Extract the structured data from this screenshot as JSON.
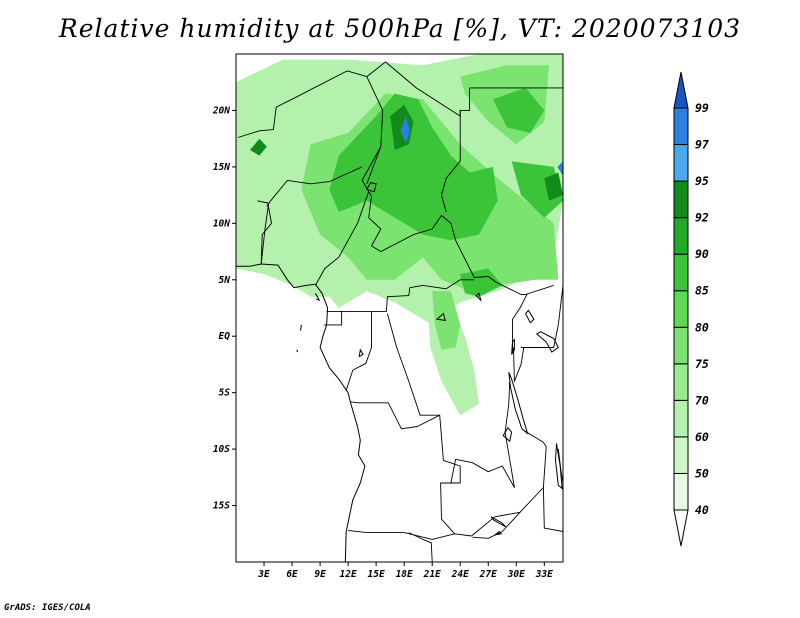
{
  "title": "Relative humidity at 500hPa [%], VT: 2020073103",
  "credit": "GrADS: IGES/COLA",
  "map": {
    "lon_range": [
      0,
      35
    ],
    "lat_range": [
      -20,
      25
    ],
    "lat_ticks": [
      {
        "value": 20,
        "label": "20N"
      },
      {
        "value": 15,
        "label": "15N"
      },
      {
        "value": 10,
        "label": "10N"
      },
      {
        "value": 5,
        "label": "5N"
      },
      {
        "value": 0,
        "label": "EQ"
      },
      {
        "value": -5,
        "label": "5S"
      },
      {
        "value": -10,
        "label": "10S"
      },
      {
        "value": -15,
        "label": "15S"
      }
    ],
    "lon_ticks": [
      {
        "value": 3,
        "label": "3E"
      },
      {
        "value": 6,
        "label": "6E"
      },
      {
        "value": 9,
        "label": "9E"
      },
      {
        "value": 12,
        "label": "12E"
      },
      {
        "value": 15,
        "label": "15E"
      },
      {
        "value": 18,
        "label": "18E"
      },
      {
        "value": 21,
        "label": "21E"
      },
      {
        "value": 24,
        "label": "24E"
      },
      {
        "value": 27,
        "label": "27E"
      },
      {
        "value": 30,
        "label": "30E"
      },
      {
        "value": 33,
        "label": "33E"
      }
    ]
  },
  "colorbar": {
    "levels": [
      "40",
      "50",
      "60",
      "70",
      "75",
      "80",
      "85",
      "90",
      "92",
      "95",
      "97",
      "99"
    ],
    "colors": [
      "#ffffff",
      "#e6fbe2",
      "#cdf7c7",
      "#b4f1ac",
      "#9aeb8f",
      "#7be36f",
      "#5cda52",
      "#3cc439",
      "#22a926",
      "#138b1c",
      "#4aa8ef",
      "#2d7fe0",
      "#1a55c4"
    ]
  },
  "humidity_regions": [
    {
      "level": 60,
      "points": [
        [
          0,
          22.5
        ],
        [
          5,
          24.5
        ],
        [
          12,
          24.5
        ],
        [
          20,
          24
        ],
        [
          26,
          25
        ],
        [
          35,
          25
        ],
        [
          35,
          12
        ],
        [
          34,
          7
        ],
        [
          32,
          5.5
        ],
        [
          28,
          4
        ],
        [
          24,
          3
        ],
        [
          21,
          1
        ],
        [
          19,
          2
        ],
        [
          17,
          3
        ],
        [
          14,
          4
        ],
        [
          11,
          2.5
        ],
        [
          10,
          3.5
        ],
        [
          8,
          3.5
        ],
        [
          6,
          4.5
        ],
        [
          3,
          5.5
        ],
        [
          0,
          6
        ]
      ]
    },
    {
      "level": 60,
      "points": [
        [
          20.5,
          3
        ],
        [
          23,
          3
        ],
        [
          24.5,
          0
        ],
        [
          25.5,
          -3
        ],
        [
          26,
          -6
        ],
        [
          24,
          -7
        ],
        [
          22,
          -4
        ],
        [
          20.8,
          -1
        ]
      ]
    },
    {
      "level": 75,
      "points": [
        [
          8,
          17
        ],
        [
          12,
          18
        ],
        [
          16,
          21.5
        ],
        [
          20,
          21
        ],
        [
          24,
          17
        ],
        [
          28,
          14
        ],
        [
          31,
          12
        ],
        [
          34,
          10
        ],
        [
          34.5,
          5
        ],
        [
          32,
          5
        ],
        [
          28,
          4.5
        ],
        [
          25,
          4
        ],
        [
          22,
          5
        ],
        [
          20,
          7
        ],
        [
          17,
          5
        ],
        [
          14,
          5
        ],
        [
          12,
          7
        ],
        [
          9,
          9
        ],
        [
          7,
          13
        ]
      ]
    },
    {
      "level": 75,
      "points": [
        [
          24,
          23
        ],
        [
          29,
          24
        ],
        [
          33.5,
          24
        ],
        [
          33,
          19
        ],
        [
          30,
          17
        ],
        [
          27,
          19
        ],
        [
          24.5,
          21.5
        ]
      ]
    },
    {
      "level": 75,
      "points": [
        [
          21,
          4
        ],
        [
          23,
          4
        ],
        [
          24,
          1
        ],
        [
          23.5,
          -1
        ],
        [
          22,
          -1.2
        ],
        [
          21.3,
          1
        ]
      ]
    },
    {
      "level": 85,
      "points": [
        [
          15,
          19.5
        ],
        [
          17,
          21.5
        ],
        [
          19.5,
          21
        ],
        [
          21,
          18.5
        ],
        [
          23,
          16
        ],
        [
          25,
          14.5
        ],
        [
          27.5,
          15
        ],
        [
          28,
          12
        ],
        [
          26,
          9
        ],
        [
          23,
          8.5
        ],
        [
          20,
          9
        ],
        [
          18,
          10
        ],
        [
          14,
          12
        ],
        [
          11,
          11
        ],
        [
          10,
          13
        ],
        [
          11,
          16
        ]
      ]
    },
    {
      "level": 85,
      "points": [
        [
          27.5,
          21
        ],
        [
          31,
          22
        ],
        [
          33,
          20
        ],
        [
          31.5,
          18
        ],
        [
          29,
          18.5
        ]
      ]
    },
    {
      "level": 85,
      "points": [
        [
          29.5,
          15.5
        ],
        [
          34,
          15
        ],
        [
          35,
          12
        ],
        [
          33,
          10.5
        ],
        [
          30.5,
          12.5
        ]
      ]
    },
    {
      "level": 85,
      "points": [
        [
          24,
          5.5
        ],
        [
          27,
          6
        ],
        [
          28.5,
          4.5
        ],
        [
          26,
          3.5
        ],
        [
          24.5,
          3.8
        ]
      ]
    },
    {
      "level": 92,
      "points": [
        [
          16.5,
          19.5
        ],
        [
          18,
          20.5
        ],
        [
          19,
          19
        ],
        [
          18.5,
          17
        ],
        [
          17,
          16.5
        ]
      ]
    },
    {
      "level": 92,
      "points": [
        [
          33,
          14
        ],
        [
          34.5,
          14.5
        ],
        [
          35,
          12.5
        ],
        [
          33.5,
          12
        ]
      ]
    },
    {
      "level": 92,
      "points": [
        [
          1.5,
          16.5
        ],
        [
          2.5,
          17.5
        ],
        [
          3.3,
          16.8
        ],
        [
          2.5,
          16
        ]
      ]
    },
    {
      "level": 97,
      "points": [
        [
          17.6,
          18.2
        ],
        [
          18.2,
          19.5
        ],
        [
          18.6,
          18.2
        ],
        [
          18.2,
          17.1
        ]
      ]
    },
    {
      "level": 97,
      "points": [
        [
          34.4,
          15
        ],
        [
          35,
          15.5
        ],
        [
          35,
          14.2
        ]
      ]
    }
  ],
  "boundaries": [
    [
      [
        0.2,
        17.6
      ],
      [
        2.5,
        18.2
      ],
      [
        4,
        18.3
      ],
      [
        4.3,
        20.3
      ],
      [
        6,
        21
      ],
      [
        11.9,
        23.5
      ],
      [
        14,
        23
      ],
      [
        16,
        24.3
      ]
    ],
    [
      [
        16,
        24.3
      ],
      [
        19.3,
        22
      ],
      [
        24,
        19.5
      ],
      [
        24,
        20
      ],
      [
        25,
        20
      ],
      [
        25,
        22
      ]
    ],
    [
      [
        25,
        22
      ],
      [
        35,
        22
      ]
    ],
    [
      [
        14,
        23
      ],
      [
        15.7,
        20
      ],
      [
        15.5,
        16.8
      ],
      [
        14,
        13.5
      ]
    ],
    [
      [
        13.5,
        15
      ],
      [
        10,
        13.7
      ],
      [
        8,
        13.5
      ],
      [
        5.5,
        13.8
      ],
      [
        3.7,
        12
      ],
      [
        3.3,
        11.5
      ]
    ],
    [
      [
        15.5,
        16.8
      ],
      [
        13.5,
        13.8
      ],
      [
        14.5,
        12.4
      ],
      [
        14.2,
        10.5
      ],
      [
        15.5,
        9.5
      ],
      [
        14.5,
        8
      ],
      [
        15.5,
        7.5
      ],
      [
        19,
        9
      ],
      [
        21,
        9.5
      ],
      [
        22,
        10.7
      ],
      [
        23,
        10
      ],
      [
        23.5,
        8.5
      ],
      [
        25.5,
        5.2
      ],
      [
        27,
        5.3
      ],
      [
        27.8,
        4.8
      ],
      [
        30.5,
        3.7
      ],
      [
        31,
        3.7
      ],
      [
        34,
        4.5
      ]
    ],
    [
      [
        24,
        20
      ],
      [
        24,
        15.5
      ],
      [
        22.5,
        14
      ],
      [
        22,
        12.5
      ],
      [
        22.5,
        11
      ]
    ],
    [
      [
        2.3,
        12
      ],
      [
        3.4,
        11.8
      ],
      [
        3.8,
        10
      ],
      [
        2.8,
        9
      ],
      [
        2.7,
        6.4
      ]
    ],
    [
      [
        3.5,
        11.8
      ],
      [
        3.1,
        9.5
      ],
      [
        2.7,
        6.4
      ]
    ],
    [
      [
        8.5,
        4.5
      ],
      [
        9.5,
        6
      ],
      [
        11,
        7
      ],
      [
        12,
        8.5
      ],
      [
        13,
        10
      ],
      [
        14.2,
        12.8
      ]
    ],
    [
      [
        9.7,
        2.2
      ],
      [
        11.3,
        2.2
      ],
      [
        16.1,
        2.2
      ],
      [
        16.2,
        3.5
      ],
      [
        18.5,
        3.6
      ],
      [
        18.6,
        4.3
      ],
      [
        20,
        4.5
      ],
      [
        22.5,
        4.2
      ],
      [
        24,
        5
      ],
      [
        25.5,
        5
      ]
    ],
    [
      [
        11.3,
        2.2
      ],
      [
        11.3,
        1
      ],
      [
        9.4,
        1
      ]
    ],
    [
      [
        14.5,
        2.2
      ],
      [
        14.5,
        -1
      ],
      [
        13.9,
        -2.4
      ],
      [
        12.5,
        -3
      ],
      [
        11.8,
        -4.8
      ]
    ],
    [
      [
        16.2,
        2
      ],
      [
        17.2,
        -1
      ],
      [
        18.5,
        -4
      ],
      [
        19.7,
        -7
      ],
      [
        21.8,
        -7
      ],
      [
        22.2,
        -11
      ],
      [
        24,
        -11.5
      ],
      [
        24,
        -13
      ],
      [
        21.9,
        -13
      ],
      [
        22,
        -16.2
      ],
      [
        23.4,
        -17.5
      ]
    ],
    [
      [
        12.2,
        -5.8
      ],
      [
        13,
        -5.9
      ],
      [
        16.3,
        -5.9
      ],
      [
        17.7,
        -8.2
      ],
      [
        19.4,
        -8
      ],
      [
        21.8,
        -7
      ]
    ],
    [
      [
        12,
        -17.2
      ],
      [
        14,
        -17.4
      ],
      [
        18,
        -17.4
      ],
      [
        21,
        -18
      ],
      [
        23.4,
        -17.5
      ],
      [
        25.2,
        -17.7
      ]
    ],
    [
      [
        23,
        -13
      ],
      [
        23.5,
        -10.9
      ],
      [
        25.3,
        -11.2
      ],
      [
        27,
        -12
      ],
      [
        28.5,
        -11.5
      ],
      [
        29.8,
        -13.4
      ],
      [
        28.8,
        -8.5
      ],
      [
        29.2,
        -6
      ],
      [
        29.3,
        -4
      ]
    ],
    [
      [
        29.7,
        -1
      ],
      [
        29.8,
        -4
      ],
      [
        30.5,
        -2.5
      ],
      [
        30.8,
        -1
      ]
    ],
    [
      [
        29.6,
        -1.4
      ],
      [
        29.6,
        1.5
      ],
      [
        30.4,
        2.5
      ],
      [
        31.2,
        3.8
      ]
    ],
    [
      [
        30.5,
        -1
      ],
      [
        34,
        -1
      ],
      [
        34.5,
        1
      ],
      [
        35,
        4.5
      ]
    ],
    [
      [
        25.2,
        -17.7
      ],
      [
        27.7,
        -16
      ],
      [
        30.4,
        -15.6
      ],
      [
        32.9,
        -13.4
      ],
      [
        33.2,
        -9.8
      ],
      [
        32.9,
        -9.4
      ],
      [
        30.7,
        -8.3
      ]
    ],
    [
      [
        30.4,
        -15.6
      ],
      [
        28.5,
        -17.3
      ],
      [
        27,
        -17.9
      ],
      [
        25.3,
        -17.8
      ]
    ],
    [
      [
        18.5,
        -17.4
      ],
      [
        20,
        -18
      ],
      [
        20.9,
        -18.3
      ],
      [
        21,
        -20
      ]
    ],
    [
      [
        32.9,
        -13.4
      ],
      [
        33,
        -17
      ],
      [
        35,
        -17.3
      ]
    ],
    [
      [
        34.5,
        -10
      ],
      [
        34.8,
        -12
      ],
      [
        35,
        -13
      ]
    ]
  ],
  "coastlines": [
    [
      [
        0,
        6.2
      ],
      [
        1.5,
        6.2
      ],
      [
        2.7,
        6.4
      ],
      [
        4.5,
        6.3
      ],
      [
        5.5,
        5
      ],
      [
        6.2,
        4.3
      ],
      [
        7.5,
        4.5
      ],
      [
        8.5,
        4.6
      ],
      [
        9.2,
        3.8
      ],
      [
        9.8,
        2.5
      ],
      [
        9.7,
        1
      ],
      [
        9.3,
        0
      ],
      [
        9,
        -1
      ],
      [
        10,
        -2.8
      ],
      [
        11,
        -3.8
      ],
      [
        12,
        -5
      ],
      [
        12.3,
        -6
      ],
      [
        13,
        -8
      ],
      [
        13.3,
        -9.2
      ],
      [
        13.1,
        -10.5
      ],
      [
        13.8,
        -11.5
      ],
      [
        13.3,
        -13
      ],
      [
        12.5,
        -14.5
      ],
      [
        12,
        -16.5
      ],
      [
        11.8,
        -17.3
      ],
      [
        11.7,
        -20
      ]
    ],
    [
      [
        0,
        -5
      ],
      [
        0,
        -5
      ]
    ]
  ],
  "lakes": [
    [
      [
        29.2,
        -3.2
      ],
      [
        29.4,
        -4.6
      ],
      [
        29.9,
        -6.5
      ],
      [
        30.6,
        -8.2
      ],
      [
        31.2,
        -8.6
      ],
      [
        30.7,
        -7.2
      ],
      [
        30.2,
        -5.7
      ],
      [
        29.5,
        -3.8
      ]
    ],
    [
      [
        31.5,
        1.2
      ],
      [
        31,
        2
      ],
      [
        31.3,
        2.3
      ],
      [
        31.9,
        1.5
      ]
    ],
    [
      [
        29.5,
        -1.6
      ],
      [
        29.6,
        -0.5
      ],
      [
        29.8,
        -0.3
      ],
      [
        29.8,
        -1.2
      ]
    ],
    [
      [
        33.2,
        -0.5
      ],
      [
        32.2,
        0.2
      ],
      [
        32.6,
        0.4
      ],
      [
        34,
        -0.2
      ],
      [
        34.5,
        -1
      ],
      [
        33.8,
        -1.4
      ]
    ],
    [
      [
        34.3,
        -9.5
      ],
      [
        34.7,
        -11.5
      ],
      [
        34.9,
        -13.5
      ],
      [
        34.5,
        -13.2
      ],
      [
        34.2,
        -11
      ]
    ],
    [
      [
        29.1,
        -8.1
      ],
      [
        28.6,
        -8.8
      ],
      [
        29.3,
        -9.3
      ],
      [
        29.5,
        -8.5
      ]
    ],
    [
      [
        27.3,
        -16
      ],
      [
        28.4,
        -16.5
      ],
      [
        28.9,
        -16.9
      ],
      [
        27.6,
        -16.3
      ]
    ],
    [
      [
        28.2,
        -17.3
      ],
      [
        27.7,
        -17.6
      ],
      [
        28.4,
        -17.5
      ]
    ],
    [
      [
        14,
        13
      ],
      [
        14.4,
        13.6
      ],
      [
        15,
        13.5
      ],
      [
        14.8,
        12.8
      ]
    ],
    [
      [
        13.2,
        -1.8
      ],
      [
        13.3,
        -1.2
      ],
      [
        13.6,
        -1.6
      ]
    ],
    [
      [
        21.5,
        1.5
      ],
      [
        22.2,
        2
      ],
      [
        22.4,
        1.4
      ]
    ],
    [
      [
        26.2,
        3.2
      ],
      [
        25.7,
        3.6
      ],
      [
        26,
        3.8
      ]
    ]
  ],
  "islands": [
    [
      [
        8.5,
        3.8
      ],
      [
        8.9,
        3.2
      ],
      [
        8.6,
        3.3
      ]
    ],
    [
      [
        7,
        1
      ],
      [
        6.9,
        0.5
      ]
    ],
    [
      [
        6.5,
        -1.2
      ],
      [
        6.6,
        -1.4
      ]
    ]
  ]
}
